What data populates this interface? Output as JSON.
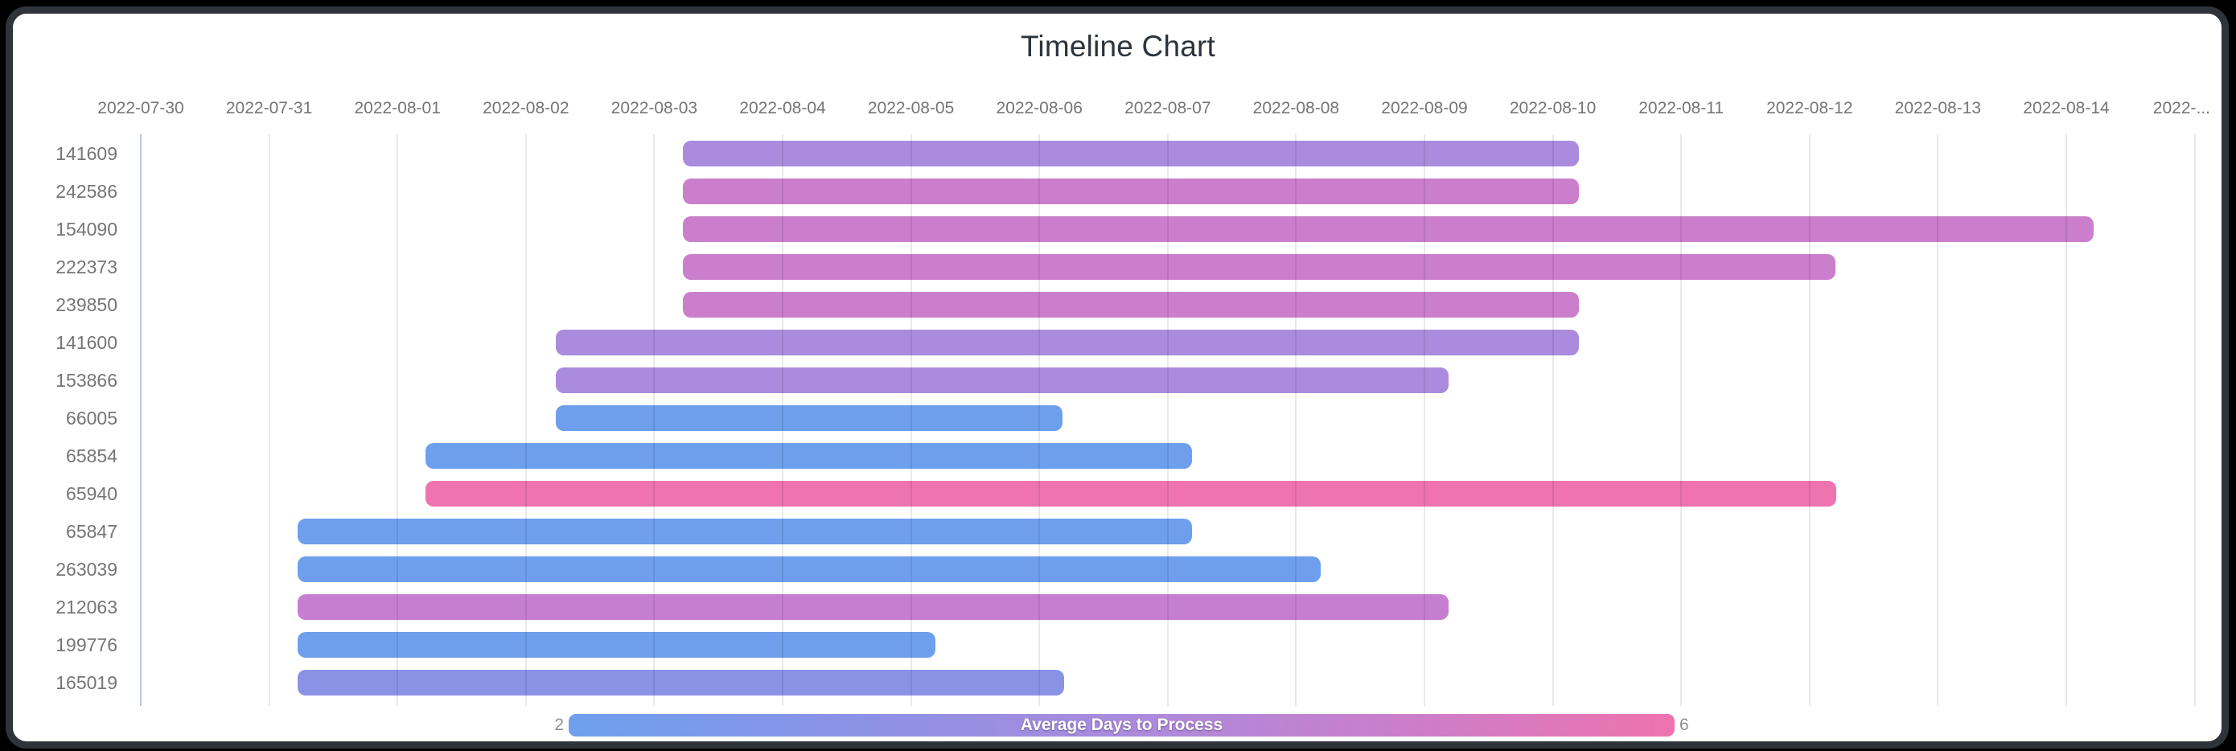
{
  "title": "Timeline Chart",
  "chart_data": {
    "type": "timeline",
    "title": "Timeline Chart",
    "x_axis": {
      "start_date": "2022-07-30",
      "tick_interval_days": 1,
      "tick_labels": [
        "2022-07-30",
        "2022-07-31",
        "2022-08-01",
        "2022-08-02",
        "2022-08-03",
        "2022-08-04",
        "2022-08-05",
        "2022-08-06",
        "2022-08-07",
        "2022-08-08",
        "2022-08-09",
        "2022-08-10",
        "2022-08-11",
        "2022-08-12",
        "2022-08-13",
        "2022-08-14",
        "2022-..."
      ]
    },
    "rows": [
      {
        "id": "141609",
        "start_date": "2022-08-03",
        "end_date": "2022-08-10",
        "start_day": 4.22,
        "end_day": 11.2,
        "color": "#aa8bdd"
      },
      {
        "id": "242586",
        "start_date": "2022-08-03",
        "end_date": "2022-08-10",
        "start_day": 4.22,
        "end_day": 11.2,
        "color": "#ca7ecb"
      },
      {
        "id": "154090",
        "start_date": "2022-08-03",
        "end_date": "2022-08-14",
        "start_day": 4.22,
        "end_day": 15.21,
        "color": "#ca7ecb"
      },
      {
        "id": "222373",
        "start_date": "2022-08-03",
        "end_date": "2022-08-12",
        "start_day": 4.22,
        "end_day": 13.2,
        "color": "#ca7ecb"
      },
      {
        "id": "239850",
        "start_date": "2022-08-03",
        "end_date": "2022-08-10",
        "start_day": 4.22,
        "end_day": 11.2,
        "color": "#ca7ecb"
      },
      {
        "id": "141600",
        "start_date": "2022-08-02",
        "end_date": "2022-08-10",
        "start_day": 3.23,
        "end_day": 11.2,
        "color": "#aa8bdd"
      },
      {
        "id": "153866",
        "start_date": "2022-08-02",
        "end_date": "2022-08-09",
        "start_day": 3.23,
        "end_day": 10.19,
        "color": "#aa8bdd"
      },
      {
        "id": "66005",
        "start_date": "2022-08-02",
        "end_date": "2022-08-06",
        "start_day": 3.23,
        "end_day": 7.18,
        "color": "#6d9fed"
      },
      {
        "id": "65854",
        "start_date": "2022-08-01",
        "end_date": "2022-08-07",
        "start_day": 2.22,
        "end_day": 8.19,
        "color": "#6d9fed"
      },
      {
        "id": "65940",
        "start_date": "2022-08-01",
        "end_date": "2022-08-12",
        "start_day": 2.22,
        "end_day": 13.21,
        "color": "#ee73ae"
      },
      {
        "id": "65847",
        "start_date": "2022-07-31",
        "end_date": "2022-08-07",
        "start_day": 1.22,
        "end_day": 8.19,
        "color": "#6d9fed"
      },
      {
        "id": "263039",
        "start_date": "2022-07-31",
        "end_date": "2022-08-08",
        "start_day": 1.22,
        "end_day": 9.19,
        "color": "#6d9fed"
      },
      {
        "id": "212063",
        "start_date": "2022-07-31",
        "end_date": "2022-08-09",
        "start_day": 1.22,
        "end_day": 10.19,
        "color": "#c67fd0"
      },
      {
        "id": "199776",
        "start_date": "2022-07-31",
        "end_date": "2022-08-05",
        "start_day": 1.22,
        "end_day": 6.19,
        "color": "#6d9fed"
      },
      {
        "id": "165019",
        "start_date": "2022-07-31",
        "end_date": "2022-08-06",
        "start_day": 1.22,
        "end_day": 7.19,
        "color": "#8a92e6"
      }
    ],
    "legend": {
      "label": "Average Days to Process",
      "min_label": "2",
      "max_label": "6",
      "gradient": [
        "#6d9fed",
        "#8a92e6",
        "#aa8bdd",
        "#ca7ecb",
        "#ee73ae"
      ]
    }
  }
}
